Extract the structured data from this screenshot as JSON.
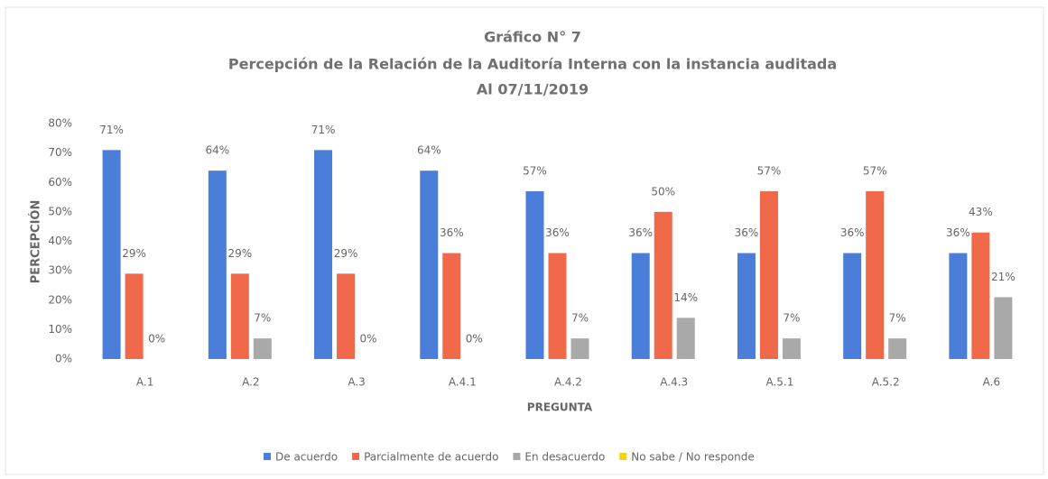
{
  "chart_data": {
    "type": "bar",
    "title": [
      "Gráfico N° 7",
      "Percepción de la Relación de la Auditoría Interna con la instancia auditada",
      "Al 07/11/2019"
    ],
    "y_label": "PERCEPCIÓN",
    "x_label": "PREGUNTA",
    "categories": [
      "A.1",
      "A.2",
      "A.3",
      "A.4.1",
      "A.4.2",
      "A.4.3",
      "A.5.1",
      "A.5.2",
      "A.6"
    ],
    "series": [
      {
        "name": "De acuerdo",
        "color": "#4a7ed8",
        "values": [
          71,
          64,
          71,
          64,
          57,
          36,
          36,
          36,
          36
        ],
        "value_labels": [
          "71%",
          "64%",
          "71%",
          "64%",
          "57%",
          "36%",
          "36%",
          "36%",
          "36%"
        ]
      },
      {
        "name": "Parcialmente de acuerdo",
        "color": "#f0694a",
        "values": [
          29,
          29,
          29,
          36,
          36,
          50,
          57,
          57,
          43
        ],
        "value_labels": [
          "29%",
          "29%",
          "29%",
          "36%",
          "36%",
          "50%",
          "57%",
          "57%",
          "43%"
        ]
      },
      {
        "name": "En desacuerdo",
        "color": "#a9a9a9",
        "values": [
          0,
          7,
          0,
          0,
          7,
          14,
          7,
          7,
          21
        ],
        "value_labels": [
          "0%",
          "7%",
          "0%",
          "0%",
          "7%",
          "14%",
          "7%",
          "7%",
          "21%"
        ]
      },
      {
        "name": "No sabe / No responde",
        "color": "#f2d40c",
        "values": [
          0,
          0,
          0,
          0,
          0,
          0,
          0,
          0,
          0
        ]
      }
    ],
    "ylim": [
      0,
      80
    ],
    "yticks": [
      {
        "value": 0,
        "label": "0%"
      },
      {
        "value": 10,
        "label": "10%"
      },
      {
        "value": 20,
        "label": "20%"
      },
      {
        "value": 30,
        "label": "30%"
      },
      {
        "value": 40,
        "label": "40%"
      },
      {
        "value": 50,
        "label": "50%"
      },
      {
        "value": 60,
        "label": "60%"
      },
      {
        "value": 70,
        "label": "70%"
      },
      {
        "value": 80,
        "label": "80%"
      }
    ],
    "legend": "bottom"
  }
}
